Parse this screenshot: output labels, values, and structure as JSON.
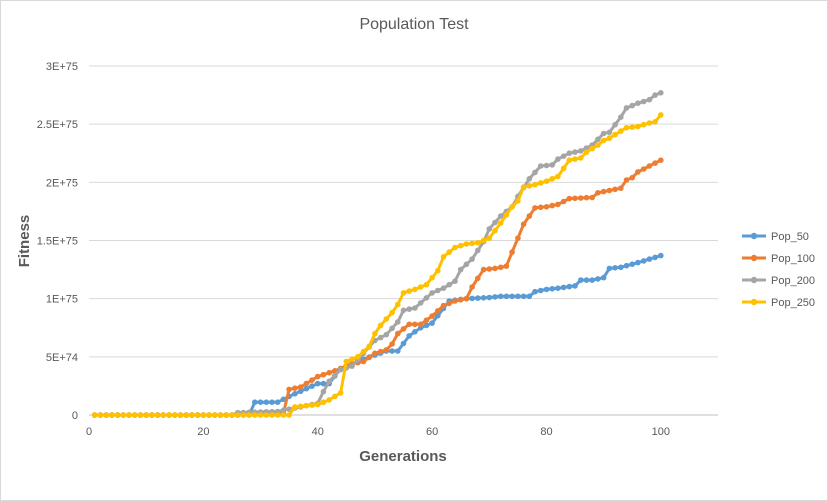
{
  "chart_data": {
    "type": "line",
    "title": "Population Test",
    "xlabel": "Generations",
    "ylabel": "Fitness",
    "xlim": [
      0,
      110
    ],
    "ylim": [
      0,
      3e+75
    ],
    "x_ticks": [
      0,
      20,
      40,
      60,
      80,
      100
    ],
    "y_ticks": [
      {
        "value": 0,
        "label": "0"
      },
      {
        "value": 5e+74,
        "label": "5E+74"
      },
      {
        "value": 1e+75,
        "label": "1E+75"
      },
      {
        "value": 1.5e+75,
        "label": "1.5E+75"
      },
      {
        "value": 2e+75,
        "label": "2E+75"
      },
      {
        "value": 2.5e+75,
        "label": "2.5E+75"
      },
      {
        "value": 3e+75,
        "label": "3E+75"
      }
    ],
    "grid": true,
    "legend_position": "right",
    "series": [
      {
        "name": "Pop_50",
        "color": "#5B9BD5",
        "points": [
          [
            1,
            0
          ],
          [
            28,
            0
          ],
          [
            29,
            1.1e+74
          ],
          [
            33,
            1.1e+74
          ],
          [
            35,
            1.6e+74
          ],
          [
            40,
            2.7e+74
          ],
          [
            42,
            2.7e+74
          ],
          [
            44,
            4e+74
          ],
          [
            48,
            4.8e+74
          ],
          [
            52,
            5.5e+74
          ],
          [
            54,
            5.5e+74
          ],
          [
            56,
            6.8e+74
          ],
          [
            58,
            7.5e+74
          ],
          [
            60,
            7.9e+74
          ],
          [
            63,
            9.8e+74
          ],
          [
            66,
            1e+75
          ],
          [
            70,
            1.01e+75
          ],
          [
            72,
            1.02e+75
          ],
          [
            77,
            1.02e+75
          ],
          [
            78,
            1.06e+75
          ],
          [
            80,
            1.08e+75
          ],
          [
            82,
            1.09e+75
          ],
          [
            85,
            1.11e+75
          ],
          [
            86,
            1.16e+75
          ],
          [
            88,
            1.16e+75
          ],
          [
            90,
            1.18e+75
          ],
          [
            91,
            1.26e+75
          ],
          [
            93,
            1.27e+75
          ],
          [
            96,
            1.31e+75
          ],
          [
            98,
            1.34e+75
          ],
          [
            100,
            1.37e+75
          ]
        ]
      },
      {
        "name": "Pop_100",
        "color": "#ED7D31",
        "points": [
          [
            1,
            0
          ],
          [
            25,
            0
          ],
          [
            30,
            5e+72
          ],
          [
            34,
            1.5e+73
          ],
          [
            35,
            2.2e+74
          ],
          [
            37,
            2.4e+74
          ],
          [
            40,
            3.3e+74
          ],
          [
            43,
            3.8e+74
          ],
          [
            44,
            4e+74
          ],
          [
            46,
            4.4e+74
          ],
          [
            48,
            4.6e+74
          ],
          [
            50,
            5.3e+74
          ],
          [
            52,
            5.6e+74
          ],
          [
            53,
            6.1e+74
          ],
          [
            54,
            7e+74
          ],
          [
            56,
            7.8e+74
          ],
          [
            58,
            7.8e+74
          ],
          [
            60,
            8.5e+74
          ],
          [
            62,
            9.4e+74
          ],
          [
            64,
            9.8e+74
          ],
          [
            66,
            1e+75
          ],
          [
            67,
            1.1e+75
          ],
          [
            69,
            1.25e+75
          ],
          [
            71,
            1.26e+75
          ],
          [
            72,
            1.27e+75
          ],
          [
            73,
            1.28e+75
          ],
          [
            74,
            1.4e+75
          ],
          [
            75,
            1.52e+75
          ],
          [
            76,
            1.64e+75
          ],
          [
            78,
            1.78e+75
          ],
          [
            80,
            1.79e+75
          ],
          [
            82,
            1.81e+75
          ],
          [
            84,
            1.86e+75
          ],
          [
            88,
            1.87e+75
          ],
          [
            89,
            1.91e+75
          ],
          [
            91,
            1.93e+75
          ],
          [
            93,
            1.95e+75
          ],
          [
            94,
            2.02e+75
          ],
          [
            95,
            2.04e+75
          ],
          [
            96,
            2.09e+75
          ],
          [
            98,
            2.14e+75
          ],
          [
            100,
            2.19e+75
          ]
        ]
      },
      {
        "name": "Pop_200",
        "color": "#A5A5A5",
        "points": [
          [
            1,
            0
          ],
          [
            25,
            0
          ],
          [
            26,
            2e+73
          ],
          [
            33,
            3e+73
          ],
          [
            36,
            6e+73
          ],
          [
            40,
            1e+74
          ],
          [
            41,
            2e+74
          ],
          [
            42,
            2.9e+74
          ],
          [
            44,
            3.9e+74
          ],
          [
            46,
            4.2e+74
          ],
          [
            48,
            5.3e+74
          ],
          [
            50,
            6.4e+74
          ],
          [
            52,
            6.9e+74
          ],
          [
            54,
            8e+74
          ],
          [
            55,
            9e+74
          ],
          [
            57,
            9.2e+74
          ],
          [
            60,
            1.05e+75
          ],
          [
            62,
            1.09e+75
          ],
          [
            64,
            1.15e+75
          ],
          [
            65,
            1.25e+75
          ],
          [
            67,
            1.34e+75
          ],
          [
            69,
            1.49e+75
          ],
          [
            70,
            1.6e+75
          ],
          [
            72,
            1.71e+75
          ],
          [
            74,
            1.79e+75
          ],
          [
            75,
            1.88e+75
          ],
          [
            77,
            2.03e+75
          ],
          [
            79,
            2.14e+75
          ],
          [
            81,
            2.15e+75
          ],
          [
            82,
            2.2e+75
          ],
          [
            84,
            2.25e+75
          ],
          [
            86,
            2.27e+75
          ],
          [
            88,
            2.32e+75
          ],
          [
            90,
            2.42e+75
          ],
          [
            91,
            2.43e+75
          ],
          [
            93,
            2.56e+75
          ],
          [
            94,
            2.64e+75
          ],
          [
            96,
            2.68e+75
          ],
          [
            98,
            2.71e+75
          ],
          [
            99,
            2.75e+75
          ],
          [
            100,
            2.77e+75
          ]
        ]
      },
      {
        "name": "Pop_250",
        "color": "#FFC000",
        "points": [
          [
            1,
            0
          ],
          [
            35,
            0
          ],
          [
            36,
            7e+73
          ],
          [
            40,
            9e+73
          ],
          [
            42,
            1.3e+74
          ],
          [
            44,
            1.9e+74
          ],
          [
            45,
            4.6e+74
          ],
          [
            47,
            5e+74
          ],
          [
            49,
            5.9e+74
          ],
          [
            50,
            7e+74
          ],
          [
            51,
            7.7e+74
          ],
          [
            53,
            8.8e+74
          ],
          [
            54,
            9.5e+74
          ],
          [
            55,
            1.05e+75
          ],
          [
            57,
            1.08e+75
          ],
          [
            59,
            1.12e+75
          ],
          [
            61,
            1.24e+75
          ],
          [
            62,
            1.36e+75
          ],
          [
            64,
            1.44e+75
          ],
          [
            66,
            1.47e+75
          ],
          [
            68,
            1.48e+75
          ],
          [
            70,
            1.52e+75
          ],
          [
            72,
            1.65e+75
          ],
          [
            74,
            1.79e+75
          ],
          [
            75,
            1.84e+75
          ],
          [
            76,
            1.96e+75
          ],
          [
            78,
            1.98e+75
          ],
          [
            80,
            2.01e+75
          ],
          [
            82,
            2.05e+75
          ],
          [
            84,
            2.19e+75
          ],
          [
            86,
            2.21e+75
          ],
          [
            87,
            2.26e+75
          ],
          [
            89,
            2.32e+75
          ],
          [
            90,
            2.36e+75
          ],
          [
            91,
            2.38e+75
          ],
          [
            94,
            2.47e+75
          ],
          [
            96,
            2.48e+75
          ],
          [
            98,
            2.51e+75
          ],
          [
            99,
            2.52e+75
          ],
          [
            100,
            2.58e+75
          ]
        ]
      }
    ]
  }
}
